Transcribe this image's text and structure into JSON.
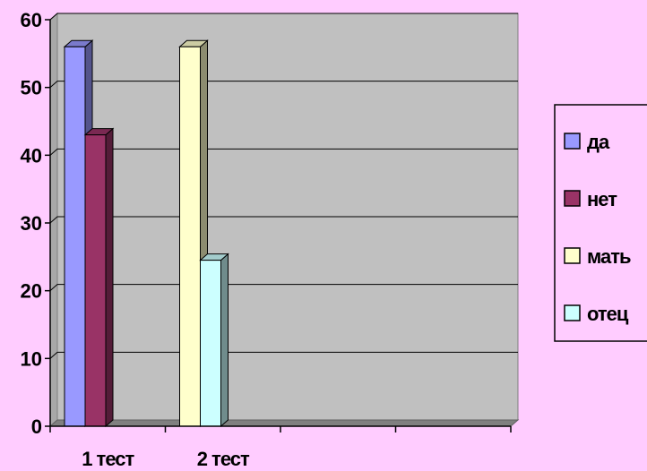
{
  "chart_data": {
    "type": "bar",
    "categories": [
      "1 тест",
      "2 тест",
      "",
      ""
    ],
    "series": [
      {
        "name": "да",
        "values": [
          56,
          null,
          null,
          null
        ],
        "color": "#9999ff"
      },
      {
        "name": "нет",
        "values": [
          43,
          null,
          null,
          null
        ],
        "color": "#993366"
      },
      {
        "name": "мать",
        "values": [
          null,
          56,
          null,
          null
        ],
        "color": "#ffffcc"
      },
      {
        "name": "отец",
        "values": [
          null,
          24.5,
          null,
          null
        ],
        "color": "#ccffff"
      }
    ],
    "y_ticks": [
      "0",
      "10",
      "20",
      "30",
      "40",
      "50",
      "60"
    ],
    "ylim": [
      0,
      60
    ],
    "grid": true,
    "legend_position": "right",
    "plot_background": "#c0c0c0",
    "page_background": "#ffccff"
  }
}
